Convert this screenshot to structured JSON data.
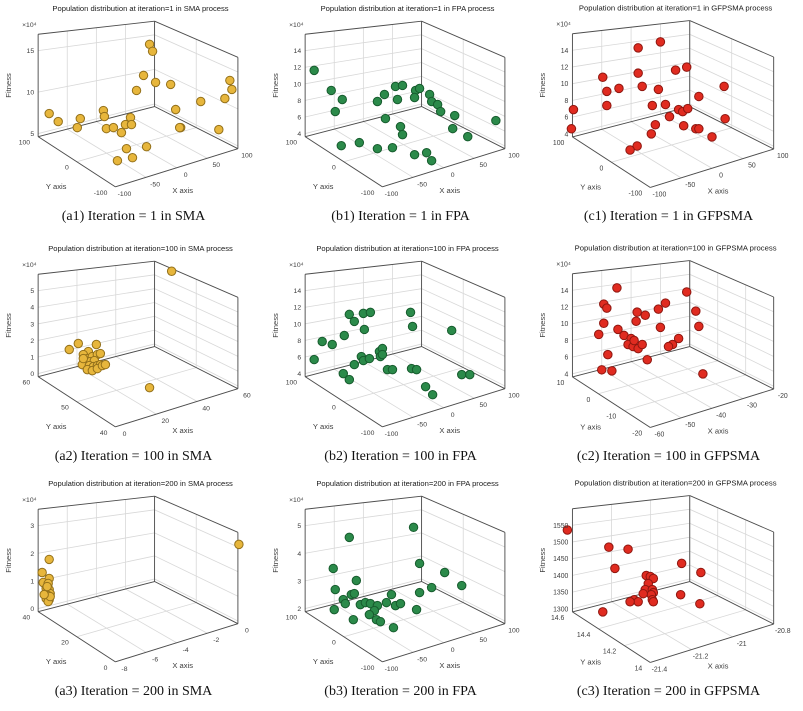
{
  "figure": {
    "background": "#ffffff",
    "grid_rows": 3,
    "grid_cols": 3,
    "description": "Population distribution 3D scatter plots for SMA, FPA and GFPSMA at iterations 1, 100, 200"
  },
  "colors": {
    "sma_fill": "#E7B63C",
    "sma_edge": "#94711B",
    "fpa_fill": "#2B8A4A",
    "fpa_edge": "#175C2E",
    "gfpsma_fill": "#E02B20",
    "gfpsma_edge": "#8F1710",
    "grid_line": "#d8d8d8",
    "box_edge": "#4d4d4d"
  },
  "chart_data": [
    {
      "id": "a1",
      "type": "scatter3d",
      "algorithm": "SMA",
      "iteration": 1,
      "title": "Population distribution at iteration=1 in SMA process",
      "caption": "(a1) Iteration = 1 in SMA",
      "zlabel": "Fitness",
      "ylabel": "Y axis",
      "xlabel": "X axis",
      "z_multiplier": "×10⁴",
      "z_ticks": [
        "5",
        "10",
        "15"
      ],
      "y_ticks": [
        "100",
        "0",
        "-100"
      ],
      "x_ticks": [
        "-100",
        "-50",
        "0",
        "50",
        "100"
      ],
      "marker_fill": "#E7B63C",
      "marker_edge": "#94711B",
      "points_units": "projected px in 266x200 viewBox",
      "points": [
        [
          149,
          43
        ],
        [
          152,
          50
        ],
        [
          143,
          74
        ],
        [
          155,
          81
        ],
        [
          136,
          89
        ],
        [
          229,
          79
        ],
        [
          231,
          88
        ],
        [
          224,
          97
        ],
        [
          200,
          100
        ],
        [
          170,
          83
        ],
        [
          175,
          108
        ],
        [
          180,
          126
        ],
        [
          49,
          112
        ],
        [
          58,
          120
        ],
        [
          80,
          117
        ],
        [
          77,
          126
        ],
        [
          103,
          109
        ],
        [
          104,
          115
        ],
        [
          106,
          127
        ],
        [
          113,
          126
        ],
        [
          125,
          123
        ],
        [
          130,
          116
        ],
        [
          131,
          123
        ],
        [
          218,
          128
        ],
        [
          179,
          126
        ],
        [
          126,
          147
        ],
        [
          146,
          145
        ],
        [
          117,
          159
        ],
        [
          132,
          156
        ],
        [
          121,
          131
        ]
      ]
    },
    {
      "id": "b1",
      "type": "scatter3d",
      "algorithm": "FPA",
      "iteration": 1,
      "title": "Population distribution at iteration=1 in FPA process",
      "caption": "(b1) Iteration = 1 in FPA",
      "zlabel": "Fitness",
      "ylabel": "Y axis",
      "xlabel": "X axis",
      "z_multiplier": "×10⁴",
      "z_ticks": [
        "4",
        "6",
        "8",
        "10",
        "12",
        "14"
      ],
      "y_ticks": [
        "100",
        "0",
        "-100"
      ],
      "x_ticks": [
        "-100",
        "-50",
        "0",
        "50",
        "100"
      ],
      "marker_fill": "#2B8A4A",
      "marker_edge": "#175C2E",
      "points_units": "projected px in 266x200 viewBox",
      "points": [
        [
          47,
          69
        ],
        [
          64,
          89
        ],
        [
          75,
          98
        ],
        [
          68,
          110
        ],
        [
          110,
          100
        ],
        [
          117,
          93
        ],
        [
          128,
          85
        ],
        [
          135,
          84
        ],
        [
          130,
          98
        ],
        [
          118,
          117
        ],
        [
          133,
          125
        ],
        [
          135,
          133
        ],
        [
          148,
          89
        ],
        [
          152,
          87
        ],
        [
          147,
          96
        ],
        [
          162,
          93
        ],
        [
          164,
          100
        ],
        [
          170,
          103
        ],
        [
          173,
          110
        ],
        [
          187,
          114
        ],
        [
          228,
          119
        ],
        [
          185,
          127
        ],
        [
          200,
          135
        ],
        [
          74,
          144
        ],
        [
          92,
          141
        ],
        [
          110,
          147
        ],
        [
          125,
          146
        ],
        [
          147,
          153
        ],
        [
          159,
          151
        ],
        [
          164,
          159
        ]
      ]
    },
    {
      "id": "c1",
      "type": "scatter3d",
      "algorithm": "GFPSMA",
      "iteration": 1,
      "title": "Population distribution at iteration=1 in GFPSMA process",
      "caption": "(c1) Iteration = 1 in GFPSMA",
      "zlabel": "Fitness",
      "ylabel": "Y axis",
      "xlabel": "X axis",
      "z_multiplier": "×10⁴",
      "z_ticks": [
        "4",
        "6",
        "8",
        "10",
        "12",
        "14"
      ],
      "y_ticks": [
        "100",
        "0",
        "-100"
      ],
      "x_ticks": [
        "-100",
        "-50",
        "0",
        "50",
        "100"
      ],
      "marker_fill": "#E02B20",
      "marker_edge": "#8F1710",
      "points_units": "projected px in 266x200 viewBox",
      "points": [
        [
          103,
          47
        ],
        [
          125,
          41
        ],
        [
          103,
          72
        ],
        [
          68,
          76
        ],
        [
          151,
          66
        ],
        [
          140,
          69
        ],
        [
          123,
          88
        ],
        [
          107,
          85
        ],
        [
          72,
          90
        ],
        [
          84,
          87
        ],
        [
          39,
          108
        ],
        [
          72,
          104
        ],
        [
          117,
          104
        ],
        [
          130,
          103
        ],
        [
          143,
          108
        ],
        [
          147,
          110
        ],
        [
          163,
          95
        ],
        [
          188,
          85
        ],
        [
          134,
          115
        ],
        [
          120,
          123
        ],
        [
          148,
          124
        ],
        [
          160,
          127
        ],
        [
          163,
          127
        ],
        [
          176,
          135
        ],
        [
          189,
          117
        ],
        [
          37,
          127
        ],
        [
          116,
          132
        ],
        [
          102,
          144
        ],
        [
          95,
          148
        ],
        [
          152,
          107
        ]
      ]
    },
    {
      "id": "a2",
      "type": "scatter3d",
      "algorithm": "SMA",
      "iteration": 100,
      "title": "Population distribution at iteration=100 in SMA process",
      "caption": "(a2) Iteration = 100 in SMA",
      "zlabel": "Fitness",
      "ylabel": "Y axis",
      "xlabel": "X axis",
      "z_multiplier": "×10⁴",
      "z_ticks": [
        "0",
        "1",
        "2",
        "3",
        "4",
        "5"
      ],
      "y_ticks": [
        "60",
        "50",
        "40"
      ],
      "x_ticks": [
        "0",
        "20",
        "40",
        "60"
      ],
      "marker_fill": "#E7B63C",
      "marker_edge": "#94711B",
      "points_units": "projected px in 266x200 viewBox",
      "points": [
        [
          171,
          30
        ],
        [
          78,
          102
        ],
        [
          69,
          108
        ],
        [
          88,
          110
        ],
        [
          96,
          103
        ],
        [
          83,
          113
        ],
        [
          87,
          117
        ],
        [
          92,
          115
        ],
        [
          97,
          113
        ],
        [
          86,
          121
        ],
        [
          90,
          120
        ],
        [
          94,
          119
        ],
        [
          82,
          123
        ],
        [
          89,
          124
        ],
        [
          93,
          125
        ],
        [
          97,
          124
        ],
        [
          100,
          123
        ],
        [
          87,
          128
        ],
        [
          92,
          129
        ],
        [
          97,
          127
        ],
        [
          102,
          124
        ],
        [
          105,
          123
        ],
        [
          83,
          117
        ],
        [
          100,
          112
        ],
        [
          149,
          146
        ]
      ]
    },
    {
      "id": "b2",
      "type": "scatter3d",
      "algorithm": "FPA",
      "iteration": 100,
      "title": "Population distribution at iteration=100 in FPA process",
      "caption": "(b2) Iteration = 100 in FPA",
      "zlabel": "Fitness",
      "ylabel": "Y axis",
      "xlabel": "X axis",
      "z_multiplier": "×10⁴",
      "z_ticks": [
        "4",
        "6",
        "8",
        "10",
        "12",
        "14"
      ],
      "y_ticks": [
        "100",
        "0",
        "-100"
      ],
      "x_ticks": [
        "-100",
        "-50",
        "0",
        "50",
        "100"
      ],
      "marker_fill": "#2B8A4A",
      "marker_edge": "#175C2E",
      "points_units": "projected px in 266x200 viewBox",
      "points": [
        [
          47,
          118
        ],
        [
          55,
          100
        ],
        [
          65,
          103
        ],
        [
          77,
          94
        ],
        [
          82,
          73
        ],
        [
          87,
          80
        ],
        [
          96,
          72
        ],
        [
          103,
          71
        ],
        [
          97,
          88
        ],
        [
          76,
          132
        ],
        [
          82,
          138
        ],
        [
          87,
          123
        ],
        [
          94,
          115
        ],
        [
          96,
          119
        ],
        [
          102,
          117
        ],
        [
          112,
          110
        ],
        [
          115,
          107
        ],
        [
          113,
          115
        ],
        [
          120,
          128
        ],
        [
          125,
          128
        ],
        [
          143,
          71
        ],
        [
          145,
          85
        ],
        [
          144,
          127
        ],
        [
          149,
          128
        ],
        [
          158,
          145
        ],
        [
          165,
          153
        ],
        [
          184,
          89
        ],
        [
          194,
          133
        ],
        [
          202,
          133
        ],
        [
          115,
          113
        ]
      ]
    },
    {
      "id": "c2",
      "type": "scatter3d",
      "algorithm": "GFPSMA",
      "iteration": 100,
      "title": "Population distribution at iteration=100 in GFPSMA process",
      "caption": "(c2) Iteration = 100 in GFPSMA",
      "zlabel": "Fitness",
      "ylabel": "Y axis",
      "xlabel": "X axis",
      "z_multiplier": "×10⁴",
      "z_ticks": [
        "4",
        "6",
        "8",
        "10",
        "12",
        "14"
      ],
      "y_ticks": [
        "10",
        "0",
        "-10",
        "-20"
      ],
      "x_ticks": [
        "-60",
        "-50",
        "-40",
        "-30",
        "-20"
      ],
      "marker_fill": "#E02B20",
      "marker_edge": "#8F1710",
      "points_units": "projected px in 266x200 viewBox",
      "points": [
        [
          82,
          47
        ],
        [
          69,
          63
        ],
        [
          72,
          67
        ],
        [
          151,
          51
        ],
        [
          130,
          62
        ],
        [
          123,
          68
        ],
        [
          102,
          71
        ],
        [
          110,
          74
        ],
        [
          69,
          82
        ],
        [
          83,
          88
        ],
        [
          64,
          93
        ],
        [
          101,
          80
        ],
        [
          89,
          94
        ],
        [
          96,
          97
        ],
        [
          93,
          103
        ],
        [
          98,
          105
        ],
        [
          103,
          107
        ],
        [
          107,
          103
        ],
        [
          99,
          99
        ],
        [
          112,
          118
        ],
        [
          125,
          86
        ],
        [
          137,
          103
        ],
        [
          133,
          105
        ],
        [
          73,
          113
        ],
        [
          67,
          128
        ],
        [
          77,
          129
        ],
        [
          160,
          70
        ],
        [
          163,
          85
        ],
        [
          167,
          132
        ],
        [
          143,
          97
        ]
      ]
    },
    {
      "id": "a3",
      "type": "scatter3d",
      "algorithm": "SMA",
      "iteration": 200,
      "title": "Population distribution at iteration=200 in SMA process",
      "caption": "(a3) Iteration = 200 in SMA",
      "zlabel": "Fitness",
      "ylabel": "Y axis",
      "xlabel": "X axis",
      "z_multiplier": "×10⁴",
      "z_ticks": [
        "0",
        "1",
        "2",
        "3"
      ],
      "y_ticks": [
        "40",
        "20",
        "0"
      ],
      "x_ticks": [
        "-8",
        "-6",
        "-4",
        "-2",
        "0"
      ],
      "marker_fill": "#E7B63C",
      "marker_edge": "#94711B",
      "points_units": "projected px in 266x200 viewBox",
      "points": [
        [
          49,
          83
        ],
        [
          42,
          96
        ],
        [
          49,
          102
        ],
        [
          43,
          106
        ],
        [
          48,
          107
        ],
        [
          46,
          112
        ],
        [
          49,
          113
        ],
        [
          47,
          116
        ],
        [
          50,
          117
        ],
        [
          48,
          119
        ],
        [
          46,
          122
        ],
        [
          49,
          123
        ],
        [
          48,
          125
        ],
        [
          50,
          120
        ],
        [
          44,
          118
        ],
        [
          47,
          110
        ],
        [
          238,
          68
        ]
      ]
    },
    {
      "id": "b3",
      "type": "scatter3d",
      "algorithm": "FPA",
      "iteration": 200,
      "title": "Population distribution at iteration=200 in FPA process",
      "caption": "(b3) Iteration = 200 in FPA",
      "zlabel": "Fitness",
      "ylabel": "Y axis",
      "xlabel": "X axis",
      "z_multiplier": "×10⁴",
      "z_ticks": [
        "2",
        "3",
        "4",
        "5"
      ],
      "y_ticks": [
        "100",
        "0",
        "-100"
      ],
      "x_ticks": [
        "-100",
        "-50",
        "0",
        "50",
        "100"
      ],
      "marker_fill": "#2B8A4A",
      "marker_edge": "#175C2E",
      "points_units": "projected px in 266x200 viewBox",
      "points": [
        [
          82,
          61
        ],
        [
          146,
          51
        ],
        [
          66,
          92
        ],
        [
          89,
          104
        ],
        [
          68,
          113
        ],
        [
          76,
          123
        ],
        [
          84,
          118
        ],
        [
          87,
          117
        ],
        [
          78,
          127
        ],
        [
          67,
          133
        ],
        [
          86,
          143
        ],
        [
          93,
          128
        ],
        [
          98,
          126
        ],
        [
          103,
          127
        ],
        [
          110,
          129
        ],
        [
          107,
          134
        ],
        [
          109,
          143
        ],
        [
          113,
          145
        ],
        [
          119,
          126
        ],
        [
          124,
          118
        ],
        [
          128,
          129
        ],
        [
          133,
          127
        ],
        [
          126,
          151
        ],
        [
          152,
          116
        ],
        [
          164,
          111
        ],
        [
          152,
          87
        ],
        [
          177,
          96
        ],
        [
          194,
          109
        ],
        [
          149,
          133
        ],
        [
          102,
          138
        ]
      ]
    },
    {
      "id": "c3",
      "type": "scatter3d",
      "algorithm": "GFPSMA",
      "iteration": 200,
      "title": "Population distribution at iteration=200 in GFPSMA process",
      "caption": "(c3) Iteration = 200 in GFPSMA",
      "zlabel": "Fitness",
      "ylabel": "Y axis",
      "xlabel": "X axis",
      "z_multiplier": "",
      "z_ticks": [
        "1300",
        "1350",
        "1400",
        "1450",
        "1500",
        "1550"
      ],
      "y_ticks": [
        "14.6",
        "14.4",
        "14.2",
        "14"
      ],
      "x_ticks": [
        "-21.4",
        "-21.2",
        "-21",
        "-20.8"
      ],
      "marker_fill": "#E02B20",
      "marker_edge": "#8F1710",
      "points_units": "projected px in 266x200 viewBox",
      "points": [
        [
          33,
          54
        ],
        [
          74,
          71
        ],
        [
          93,
          73
        ],
        [
          80,
          92
        ],
        [
          146,
          87
        ],
        [
          165,
          96
        ],
        [
          111,
          99
        ],
        [
          115,
          100
        ],
        [
          118,
          102
        ],
        [
          113,
          107
        ],
        [
          110,
          113
        ],
        [
          117,
          113
        ],
        [
          118,
          116
        ],
        [
          116,
          118
        ],
        [
          117,
          123
        ],
        [
          118,
          125
        ],
        [
          108,
          117
        ],
        [
          99,
          123
        ],
        [
          103,
          125
        ],
        [
          95,
          125
        ],
        [
          145,
          118
        ],
        [
          164,
          127
        ],
        [
          68,
          135
        ]
      ]
    }
  ]
}
